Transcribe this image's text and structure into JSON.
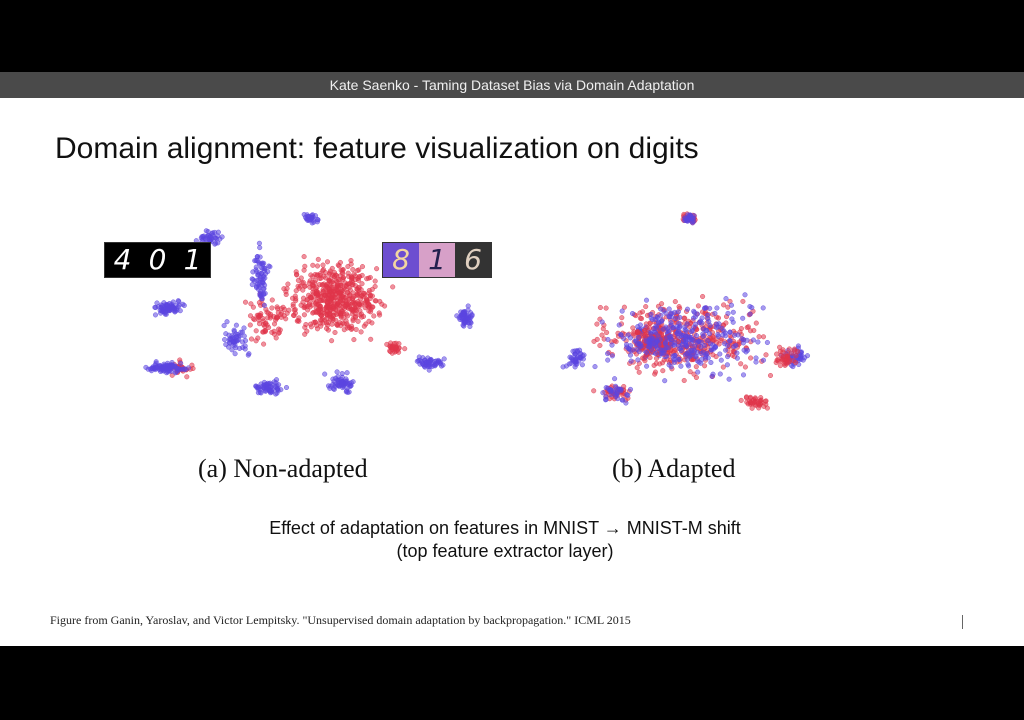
{
  "banner": {
    "text": "Kate Saenko - Taming Dataset Bias via Domain Adaptation"
  },
  "slide": {
    "title": "Domain alignment: feature visualization on digits",
    "captions": {
      "a": "(a)  Non-adapted",
      "b": "(b)  Adapted"
    },
    "subcaption_line1": "Effect of adaptation on features in MNIST → MNIST-M shift",
    "subcaption_line2": "(top feature extractor layer)",
    "citation": "Figure from Ganin, Yaroslav, and Victor Lempitsky. \"Unsupervised domain adaptation by backpropagation.\" ICML 2015",
    "mnist_digits": [
      "4",
      "0",
      "1"
    ],
    "mnistm_digits": [
      "8",
      "1",
      "6"
    ]
  },
  "colors": {
    "source": "#e0344a",
    "target": "#5b45e0"
  }
}
